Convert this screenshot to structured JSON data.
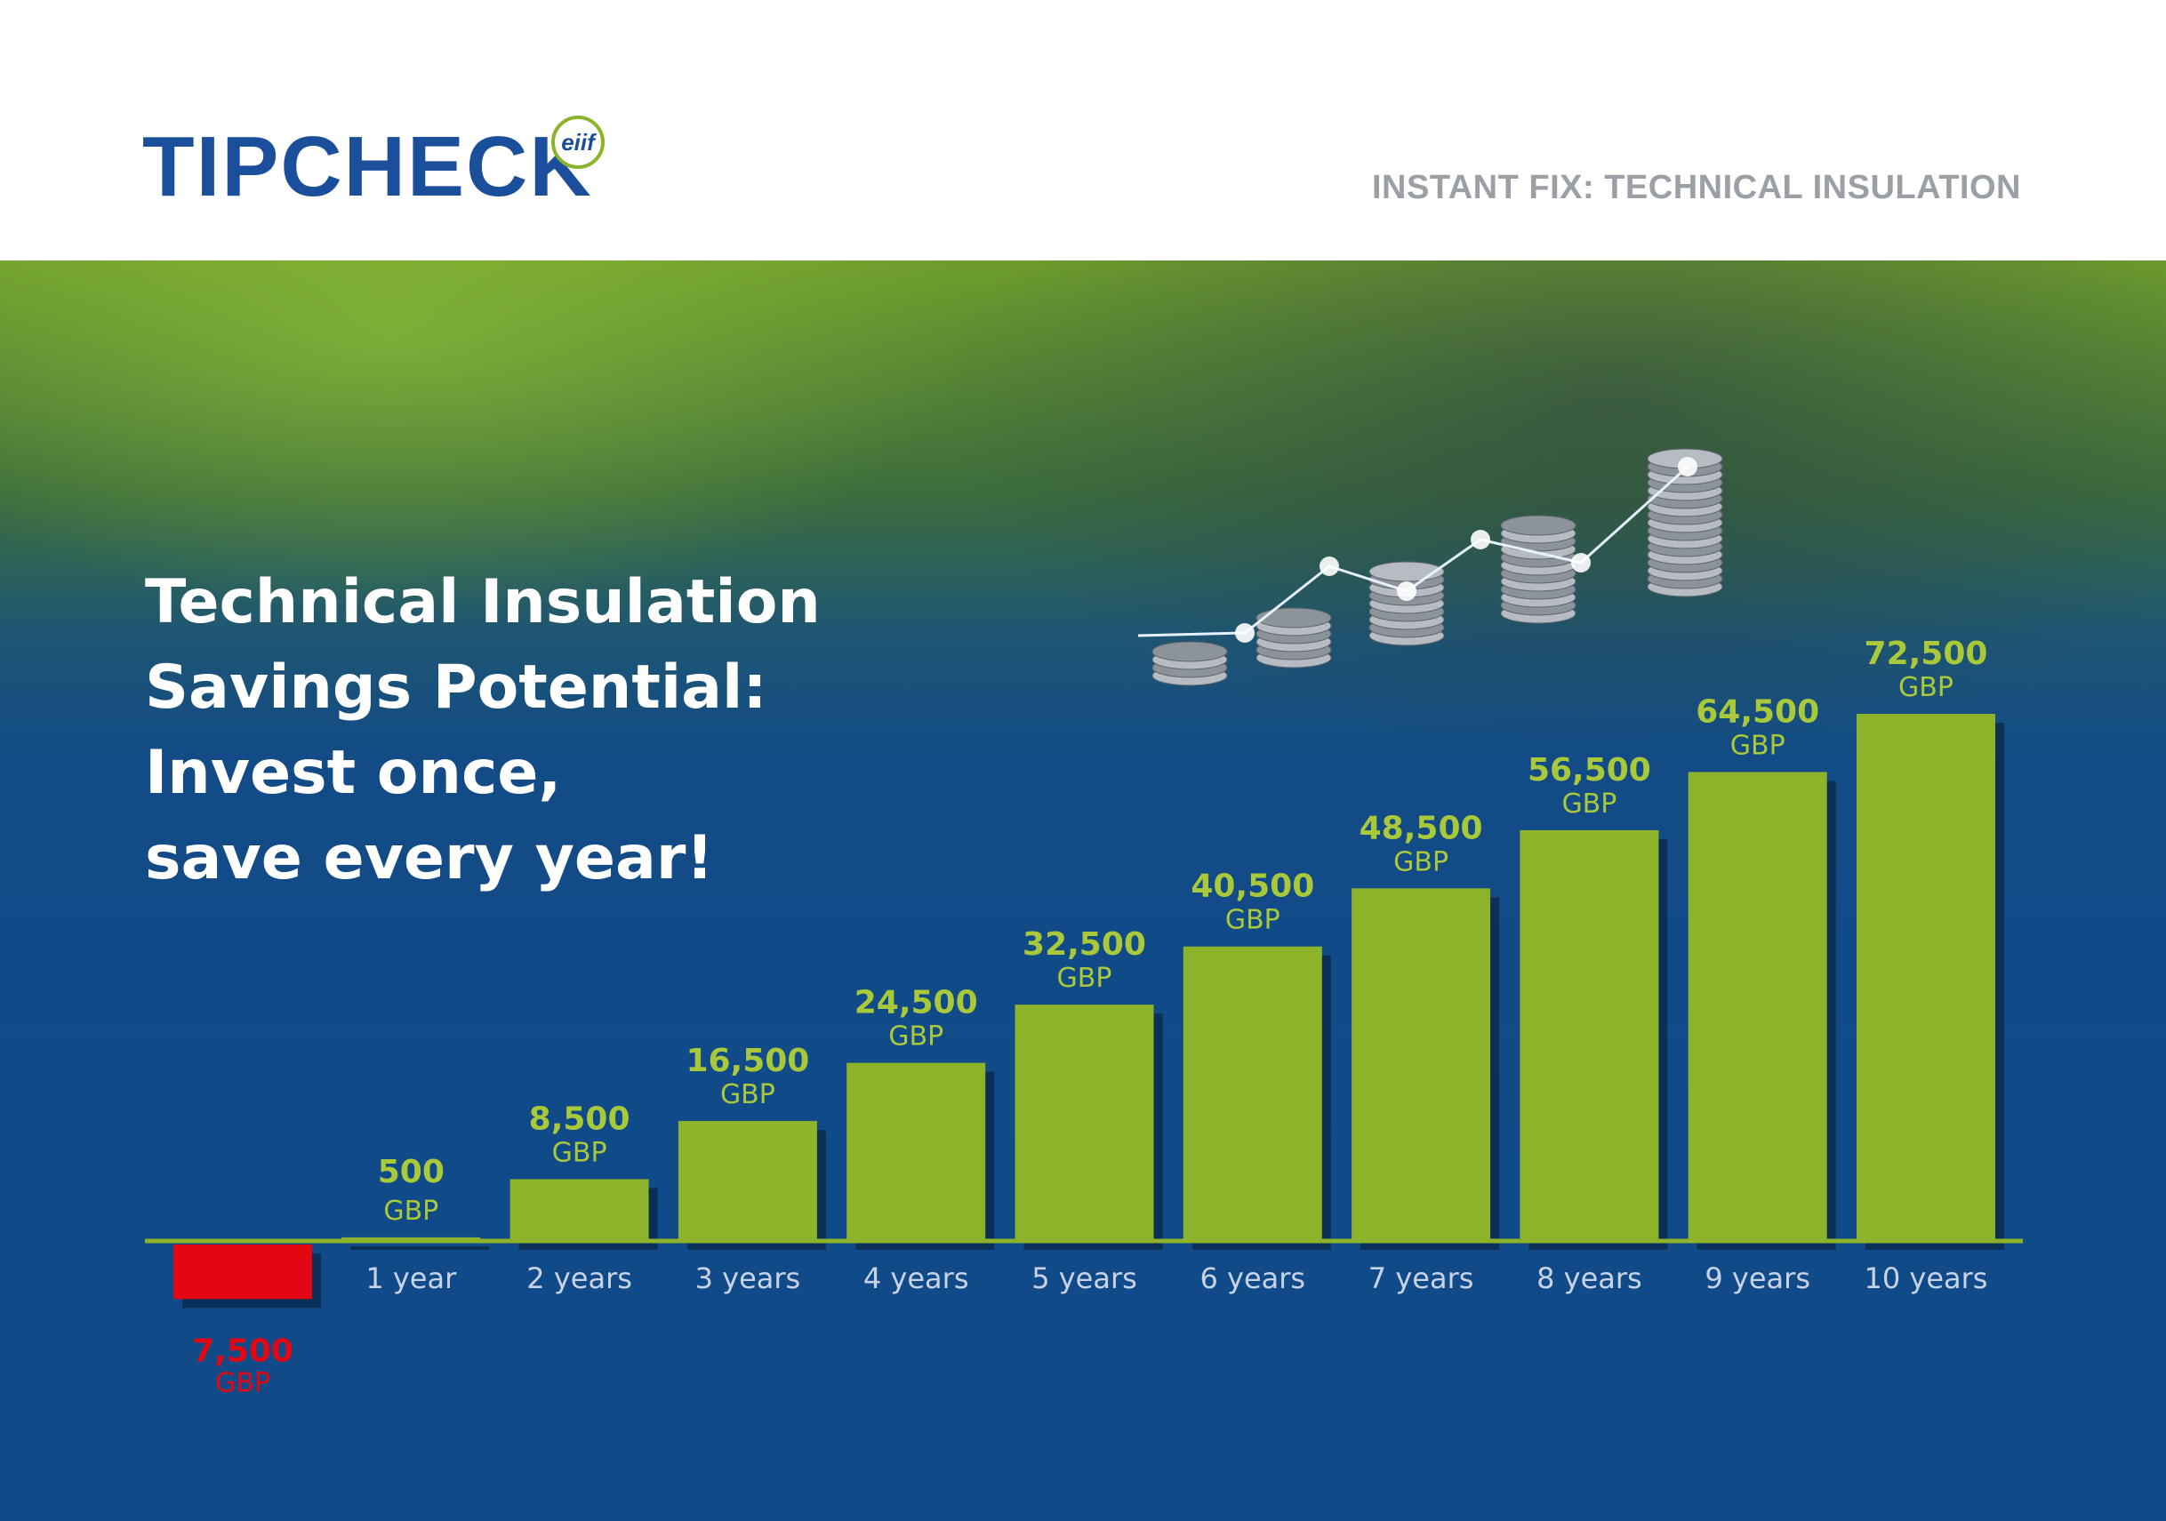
{
  "header": {
    "logo_text": "TIPCHECK",
    "logo_badge": "eiif",
    "tagline": "INSTANT FIX: TECHNICAL INSULATION"
  },
  "headline": {
    "lines": [
      "Technical Insulation",
      "Savings Potential:",
      "Invest once,",
      "save every year!"
    ]
  },
  "colors": {
    "brand_blue": "#1b4f9c",
    "bar_green": "#8db32a",
    "value_green": "#a9c93a",
    "negative_red": "#e30613",
    "background_blue": "#0f4a8a"
  },
  "icons": [
    "coin-stacks-photo",
    "growth-line-icon"
  ],
  "chart_data": {
    "type": "bar",
    "title": "",
    "xlabel": "",
    "ylabel": "",
    "unit": "GBP",
    "categories": [
      "",
      "1 year",
      "2 years",
      "3 years",
      "4 years",
      "5 years",
      "6 years",
      "7 years",
      "8 years",
      "9 years",
      "10 years"
    ],
    "values": [
      -7500,
      500,
      8500,
      16500,
      24500,
      32500,
      40500,
      48500,
      56500,
      64500,
      72500
    ],
    "value_labels": [
      "7,500",
      "500",
      "8,500",
      "16,500",
      "24,500",
      "32,500",
      "40,500",
      "48,500",
      "56,500",
      "64,500",
      "72,500"
    ],
    "ylim": [
      -7500,
      72500
    ],
    "grid": false,
    "legend": "none"
  }
}
